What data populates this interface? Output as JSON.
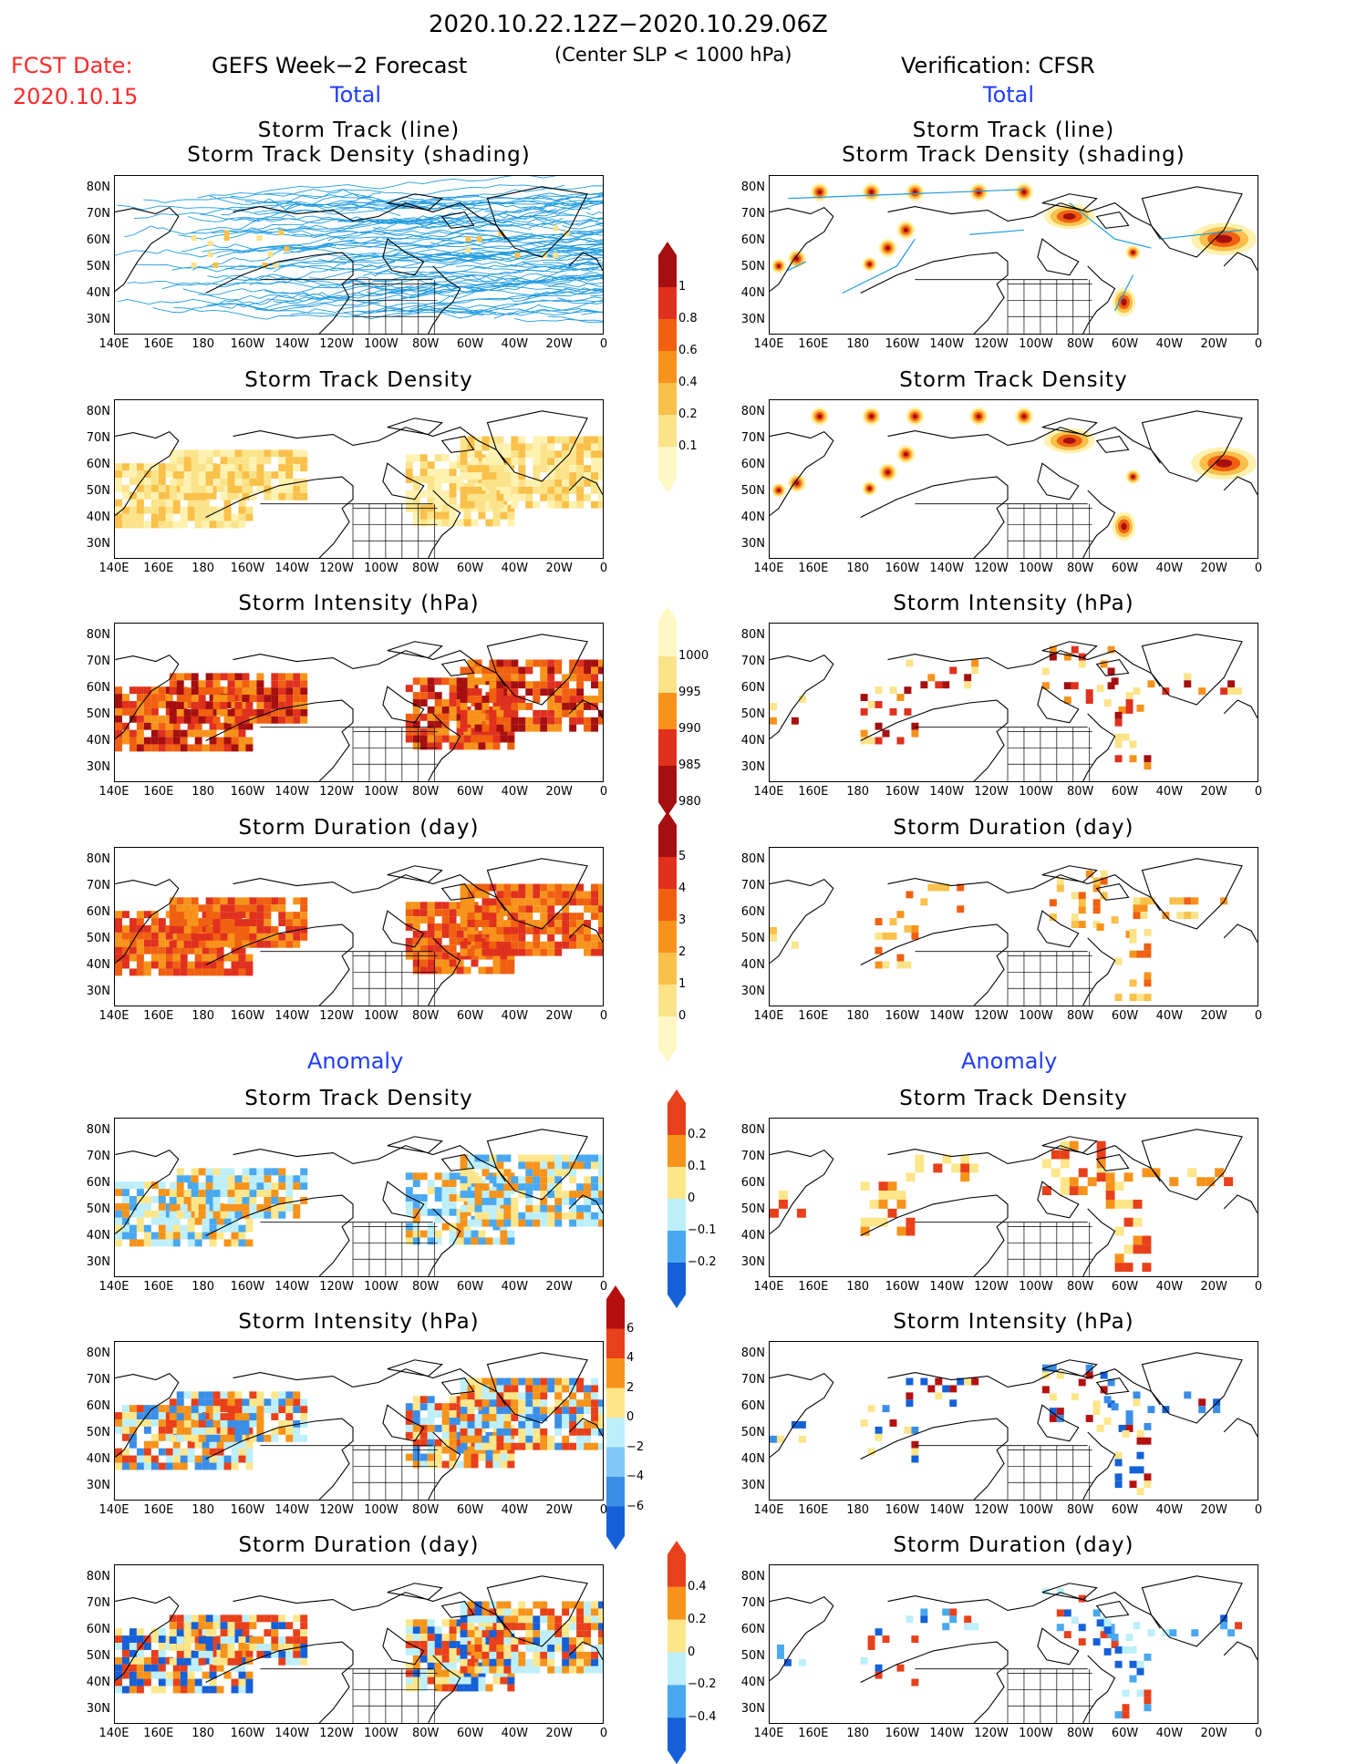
{
  "header": {
    "date_range": "2020.10.22.12Z−2020.10.29.06Z",
    "subtitle": "(Center SLP < 1000 hPa)",
    "fcst_label": "FCST Date:",
    "fcst_date": "2020.10.15",
    "left_model": "GEFS Week−2 Forecast",
    "right_model": "Verification: CFSR"
  },
  "sections": {
    "total": "Total",
    "anomaly": "Anomaly"
  },
  "panels": {
    "track_line": "Storm Track (line)",
    "track_shading": "Storm Track Density (shading)",
    "density": "Storm Track Density",
    "intensity": "Storm Intensity (hPa)",
    "duration": "Storm Duration (day)"
  },
  "axes": {
    "lat_labels": [
      "80N",
      "70N",
      "60N",
      "50N",
      "40N",
      "30N"
    ],
    "lon_labels": [
      "140E",
      "160E",
      "180",
      "160W",
      "140W",
      "120W",
      "100W",
      "80W",
      "60W",
      "40W",
      "20W",
      "0"
    ]
  },
  "colorbars": {
    "density_total": {
      "labels": [
        "1",
        "0.8",
        "0.6",
        "0.4",
        "0.2",
        "0.1"
      ],
      "colors": [
        "#a50f0f",
        "#e0301e",
        "#f06010",
        "#f7931a",
        "#f9c04a",
        "#fbe38a",
        "#fff8c4"
      ]
    },
    "intensity_total": {
      "labels": [
        "1000",
        "995",
        "990",
        "985",
        "980"
      ],
      "colors": [
        "#fff8c4",
        "#fbe38a",
        "#f7931a",
        "#e0301e",
        "#a50f0f"
      ]
    },
    "duration_total": {
      "labels": [
        "5",
        "4",
        "3",
        "2",
        "1",
        "0"
      ],
      "colors": [
        "#a50f0f",
        "#e0301e",
        "#f06010",
        "#f7931a",
        "#f9c04a",
        "#fbe38a",
        "#fff8c4"
      ]
    },
    "density_anom": {
      "labels": [
        "0.2",
        "0.1",
        "0",
        "−0.1",
        "−0.2"
      ],
      "colors": [
        "#e8401a",
        "#f7931a",
        "#fde68a",
        "#bdeffa",
        "#4aa8f0",
        "#1560d8"
      ]
    },
    "intensity_anom": {
      "labels": [
        "6",
        "4",
        "2",
        "0",
        "−2",
        "−4",
        "−6"
      ],
      "colors": [
        "#b51010",
        "#e8401a",
        "#f7931a",
        "#fde68a",
        "#bdeffa",
        "#7fc8f8",
        "#3a8ee8",
        "#1560d8"
      ]
    },
    "duration_anom": {
      "labels": [
        "0.4",
        "0.2",
        "0",
        "−0.2",
        "−0.4"
      ],
      "colors": [
        "#e8401a",
        "#f7931a",
        "#fde68a",
        "#bdeffa",
        "#4aa8f0",
        "#1560d8"
      ]
    }
  },
  "legend_colors": {
    "track_line": "#1e9be0",
    "land_outline": "#000000"
  }
}
